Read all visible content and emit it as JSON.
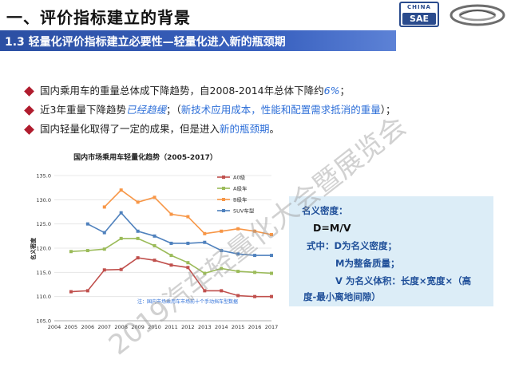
{
  "header": {
    "title": "一、评价指标建立的背景",
    "subtitle": "1.3 轻量化评价指标建立必要性—轻量化进入新的瓶颈期",
    "logo_top": "CHINA",
    "logo_main": "SAE"
  },
  "bullets": [
    {
      "pre": "国内乘用车的重量总体成下降趋势，自2008-2014年总体下降约",
      "em": "6%",
      "post": "；"
    },
    {
      "pre": "近3年重量下降趋势",
      "em": "已经趋缓",
      "mid": "；（",
      "blue": "新技术应用成本，性能和配置需求抵消的重量",
      "post": "）；"
    },
    {
      "pre": "国内轻量化取得了一定的成果，但是进入",
      "blue": "新的瓶颈期",
      "post": "。"
    }
  ],
  "density": {
    "heading": "名义密度：",
    "formula": "D=M/V",
    "line1": "式中：D为名义密度；",
    "line2": "M为整备质量；",
    "line3": "V 为名义体积：长度×宽度×（高",
    "line4": "度-最小离地间隙）"
  },
  "watermark": "2019汽车轻量化大会暨展览会",
  "colors": {
    "banner": "#2b4fa3",
    "bullet_diamond": "#b01c2e",
    "highlight": "#2e6fd8",
    "density_bg": "#dcedf7",
    "density_text": "#1f4f99"
  },
  "chart_data": {
    "type": "line",
    "title": "国内市场乘用车轻量化趋势（2005-2017）",
    "xlabel": "",
    "ylabel": "名义密度",
    "ylim": [
      105,
      135
    ],
    "yticks": [
      "105.0",
      "110.0",
      "115.0",
      "120.0",
      "125.0",
      "130.0",
      "135.0"
    ],
    "categories": [
      "2004",
      "2005",
      "2006",
      "2007",
      "2008",
      "2009",
      "2010",
      "2011",
      "2012",
      "2013",
      "2014",
      "2015",
      "2016",
      "2017"
    ],
    "note": "注：国内市场乘用车市场前十个手动挡车型数据",
    "legend_position": "top-right",
    "series": [
      {
        "name": "A0级",
        "color": "#c0504d",
        "values": [
          null,
          111.0,
          111.2,
          115.5,
          115.6,
          118.0,
          117.5,
          116.5,
          116.0,
          111.2,
          111.2,
          110.2,
          110.0,
          110.0
        ]
      },
      {
        "name": "A级车",
        "color": "#9bbb59",
        "values": [
          null,
          119.3,
          119.5,
          119.8,
          122.0,
          122.0,
          120.5,
          118.5,
          117.0,
          114.8,
          115.8,
          115.2,
          115.0,
          114.8
        ]
      },
      {
        "name": "B级车",
        "color": "#f79646",
        "values": [
          null,
          null,
          null,
          128.5,
          132.0,
          129.5,
          130.5,
          127.0,
          126.5,
          123.0,
          123.5,
          124.0,
          123.5,
          122.8
        ]
      },
      {
        "name": "SUV车型",
        "color": "#4f81bd",
        "values": [
          null,
          null,
          125.0,
          123.2,
          127.3,
          123.5,
          122.5,
          121.0,
          121.0,
          121.2,
          119.5,
          118.8,
          118.5,
          118.5
        ]
      }
    ]
  }
}
